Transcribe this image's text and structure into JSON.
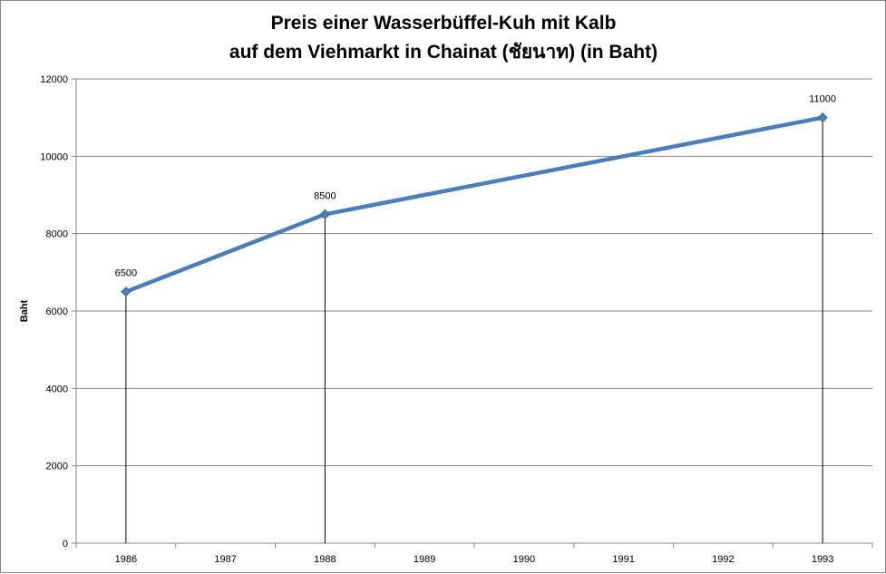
{
  "chart_data": {
    "type": "line",
    "title": "Preis einer Wasserbüffel-Kuh mit Kalb",
    "subtitle": "auf dem Viehmarkt in Chainat (ชัยนาท) (in Baht)",
    "xlabel": "",
    "ylabel": "Baht",
    "categories": [
      "1986",
      "1987",
      "1988",
      "1989",
      "1990",
      "1991",
      "1992",
      "1993"
    ],
    "ylim": [
      0,
      12000
    ],
    "yticks": [
      0,
      2000,
      4000,
      6000,
      8000,
      10000,
      12000
    ],
    "grid": true,
    "legend": "none",
    "series": [
      {
        "values": [
          6500,
          7500,
          8500,
          9000,
          9500,
          10000,
          10500,
          11000
        ],
        "color": "#4a7ebb"
      }
    ],
    "markers": [
      {
        "category": "1986",
        "value": 6500,
        "label": "6500"
      },
      {
        "category": "1988",
        "value": 8500,
        "label": "8500"
      },
      {
        "category": "1993",
        "value": 11000,
        "label": "11000"
      }
    ],
    "drop_lines": true
  }
}
